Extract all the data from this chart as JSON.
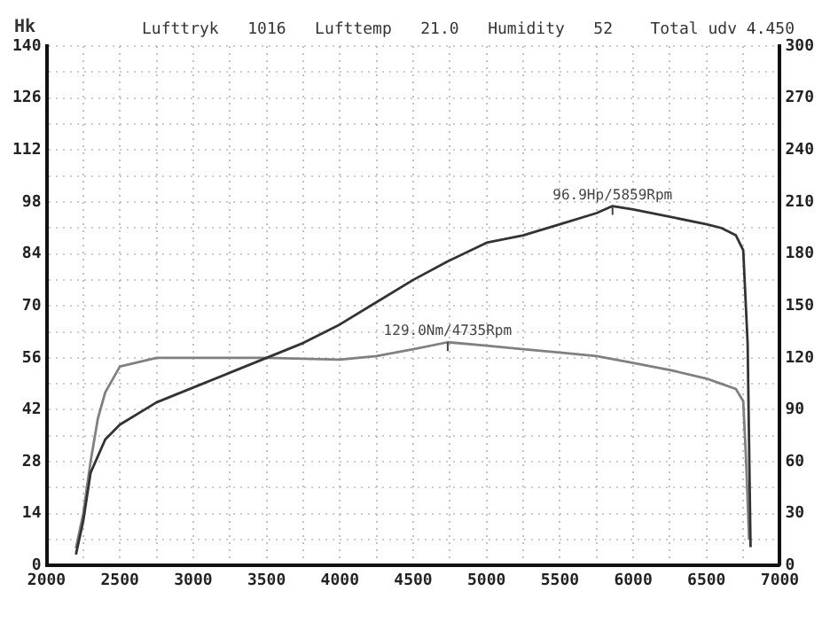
{
  "chart_data": {
    "type": "line",
    "ylabel": "Hk",
    "annotations": [
      "Lufttryk   1016   Lufttemp   21.0   Humidity   52",
      "Total udv 4.450",
      {
        "text": "96.9Hp/5859Rpm",
        "x": 5859,
        "y": 96.9
      },
      {
        "text": "129.0Nm/4735Rpm",
        "x": 4735,
        "y": 60.2
      }
    ],
    "series": [
      {
        "color": "#333333",
        "x": [
          2200,
          2250,
          2300,
          2400,
          2500,
          2750,
          3000,
          3250,
          3500,
          3750,
          4000,
          4250,
          4500,
          4735,
          5000,
          5250,
          5500,
          5750,
          5859,
          6000,
          6250,
          6500,
          6600,
          6700,
          6750,
          6780,
          6800
        ],
        "values": [
          3,
          12,
          25,
          34,
          38,
          44,
          48,
          52,
          56,
          60,
          65,
          71,
          77,
          82,
          87,
          89,
          92,
          95,
          96.9,
          96,
          94,
          92,
          91,
          89,
          85,
          60,
          5
        ]
      },
      {
        "color": "#808080",
        "axis": "y2",
        "x": [
          2200,
          2250,
          2300,
          2350,
          2400,
          2500,
          2750,
          3000,
          3500,
          4000,
          4250,
          4500,
          4735,
          5000,
          5250,
          5500,
          5750,
          6000,
          6250,
          6500,
          6600,
          6700,
          6750,
          6770,
          6790
        ],
        "values": [
          10,
          30,
          60,
          85,
          100,
          115,
          120,
          120,
          120,
          119,
          121,
          125,
          129,
          127,
          125,
          123,
          121,
          117,
          113,
          108,
          105,
          102,
          95,
          60,
          15
        ]
      }
    ],
    "xlim": [
      2000,
      7000
    ],
    "xticks": [
      2000,
      {
        "value": 2250,
        "label": null
      },
      2500,
      {
        "value": 2750,
        "label": null
      },
      3000,
      {
        "value": 3250,
        "label": null
      },
      3500,
      {
        "value": 3750,
        "label": null
      },
      4000,
      {
        "value": 4250,
        "label": null
      },
      4500,
      {
        "value": 4750,
        "label": null
      },
      5000,
      {
        "value": 5250,
        "label": null
      },
      5500,
      {
        "value": 5750,
        "label": null
      },
      6000,
      {
        "value": 6250,
        "label": null
      },
      6500,
      {
        "value": 6750,
        "label": null
      },
      7000
    ],
    "ylim": [
      0,
      140
    ],
    "yticks": [
      0,
      {
        "value": 7,
        "label": null
      },
      14,
      {
        "value": 21,
        "label": null
      },
      28,
      {
        "value": 35,
        "label": null
      },
      42,
      {
        "value": 49,
        "label": null
      },
      56,
      {
        "value": 63,
        "label": null
      },
      70,
      {
        "value": 77,
        "label": null
      },
      84,
      {
        "value": 91,
        "label": null
      },
      98,
      {
        "value": 105,
        "label": null
      },
      112,
      {
        "value": 119,
        "label": null
      },
      126,
      {
        "value": 133,
        "label": null
      },
      140
    ],
    "y2lim": [
      0,
      300
    ],
    "y2ticks": [
      0,
      30,
      60,
      90,
      120,
      150,
      180,
      210,
      240,
      270,
      300
    ],
    "grid": true
  }
}
